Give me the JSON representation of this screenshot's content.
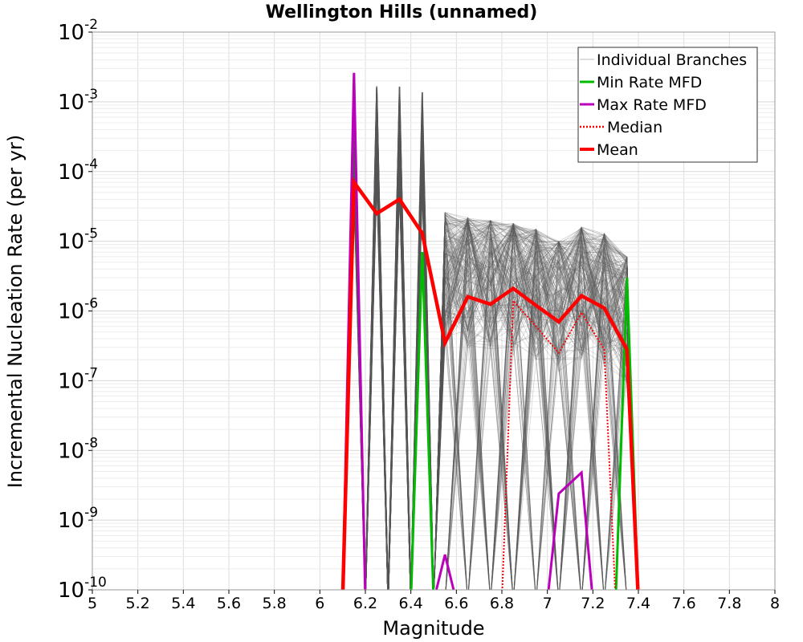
{
  "chart_data": {
    "type": "line",
    "title": "Wellington Hills (unnamed)",
    "xlabel": "Magnitude",
    "ylabel": "Incremental Nucleation Rate (per yr)",
    "xlim": [
      5,
      8
    ],
    "ylim": [
      1e-10,
      0.01
    ],
    "y_scale": "log",
    "x_ticks": [
      "5",
      "5.2",
      "5.4",
      "5.6",
      "5.8",
      "6",
      "6.2",
      "6.4",
      "6.6",
      "6.8",
      "7",
      "7.2",
      "7.4",
      "7.6",
      "7.8",
      "8"
    ],
    "y_ticks": [
      {
        "base": "10",
        "exp": "-10"
      },
      {
        "base": "10",
        "exp": "-9"
      },
      {
        "base": "10",
        "exp": "-8"
      },
      {
        "base": "10",
        "exp": "-7"
      },
      {
        "base": "10",
        "exp": "-6"
      },
      {
        "base": "10",
        "exp": "-5"
      },
      {
        "base": "10",
        "exp": "-4"
      },
      {
        "base": "10",
        "exp": "-3"
      },
      {
        "base": "10",
        "exp": "-2"
      }
    ],
    "grid": true,
    "legend_position": "top-right",
    "series": [
      {
        "name": "Individual Branches",
        "color": "#555555",
        "style": "thin",
        "envelope": [
          {
            "x": 6.15,
            "ymax": 0.0015
          },
          {
            "x": 6.25,
            "ymax": 0.0017
          },
          {
            "x": 6.35,
            "ymax": 0.0017
          },
          {
            "x": 6.45,
            "ymax": 0.0014
          },
          {
            "x": 6.55,
            "ymax": 2.6e-05
          },
          {
            "x": 6.65,
            "ymax": 2.2e-05
          },
          {
            "x": 6.75,
            "ymax": 2e-05
          },
          {
            "x": 6.85,
            "ymax": 1.8e-05
          },
          {
            "x": 6.95,
            "ymax": 1.5e-05
          },
          {
            "x": 7.05,
            "ymax": 1e-05
          },
          {
            "x": 7.15,
            "ymax": 1.6e-05
          },
          {
            "x": 7.25,
            "ymax": 1.3e-05
          },
          {
            "x": 7.35,
            "ymax": 6e-06
          }
        ]
      },
      {
        "name": "Min Rate MFD",
        "color": "#00bb00",
        "style": "solid",
        "x": [
          6.15,
          6.25,
          6.35,
          6.45,
          6.55,
          6.65,
          6.75,
          6.85,
          6.95,
          7.05,
          7.15,
          7.25,
          7.35
        ],
        "y": [
          0,
          0,
          0,
          7e-06,
          0,
          0,
          0,
          0,
          0,
          0,
          0,
          0,
          3e-06
        ]
      },
      {
        "name": "Max Rate MFD",
        "color": "#bb00bb",
        "style": "solid",
        "x": [
          6.15,
          6.25,
          6.35,
          6.45,
          6.55,
          6.65,
          6.75,
          6.85,
          6.95,
          7.05,
          7.15,
          7.25,
          7.35
        ],
        "y": [
          0.0026,
          0,
          0,
          0,
          3.2e-10,
          0,
          0,
          0,
          0,
          2.4e-09,
          4.8e-09,
          0,
          0
        ]
      },
      {
        "name": "Median",
        "color": "#ff0000",
        "style": "dotted",
        "x": [
          6.15,
          6.25,
          6.35,
          6.45,
          6.55,
          6.65,
          6.75,
          6.85,
          6.95,
          7.05,
          7.15,
          7.25,
          7.35
        ],
        "y": [
          0,
          0,
          0,
          0,
          0,
          0,
          0,
          1.4e-06,
          6e-07,
          2.5e-07,
          9.5e-07,
          2.8e-07,
          0
        ]
      },
      {
        "name": "Mean",
        "color": "#ff0000",
        "style": "thick",
        "x": [
          6.15,
          6.25,
          6.35,
          6.45,
          6.55,
          6.65,
          6.75,
          6.85,
          6.95,
          7.05,
          7.15,
          7.25,
          7.35
        ],
        "y": [
          7e-05,
          2.5e-05,
          4e-05,
          1.3e-05,
          3.5e-07,
          1.6e-06,
          1.25e-06,
          2.1e-06,
          1.2e-06,
          7e-07,
          1.65e-06,
          1.1e-06,
          2.8e-07
        ]
      }
    ]
  }
}
